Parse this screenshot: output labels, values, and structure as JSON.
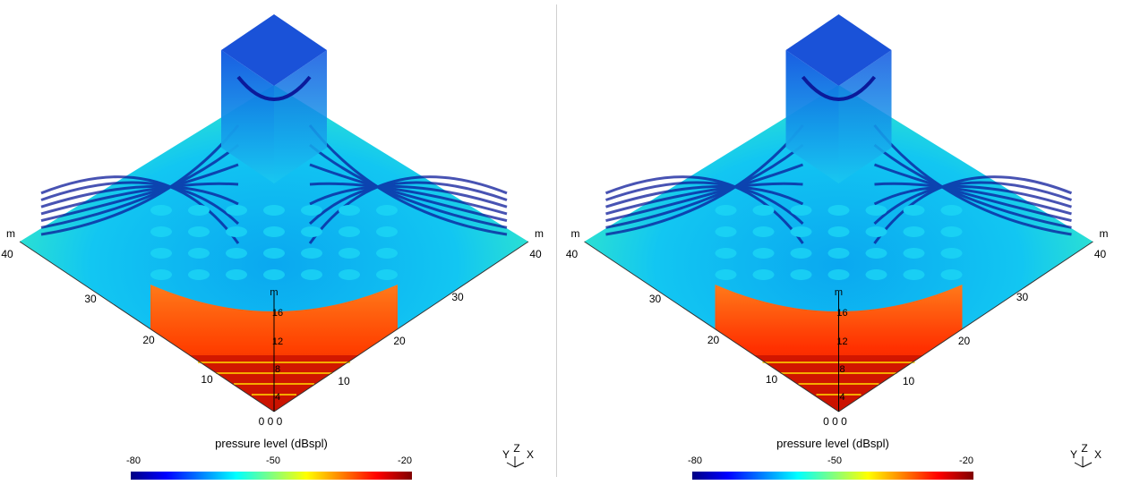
{
  "colors": {
    "scale": [
      "#000083",
      "#0000ff",
      "#0080ff",
      "#00ffff",
      "#80ff80",
      "#ffff00",
      "#ff8000",
      "#ff0000",
      "#800000"
    ],
    "field_base": "#19d4f0",
    "node_line": "#0b1a9a",
    "hot": "#ff4000"
  },
  "chart_data": [
    {
      "type": "heatmap",
      "title": "",
      "axis_unit": "m",
      "x_ticks": [
        "0",
        "10",
        "20",
        "30",
        "40"
      ],
      "y_ticks": [
        "0",
        "10",
        "20",
        "30",
        "40"
      ],
      "z_ticks": [
        "4",
        "8",
        "12",
        "16"
      ],
      "origin_label": "0",
      "orientation_axes": [
        "Y",
        "Z",
        "X"
      ],
      "colorbar": {
        "label": "pressure level (dBspl)",
        "min_label": "-80",
        "mid_label": "-50",
        "max_label": "-20",
        "min": -80,
        "max": -20
      }
    },
    {
      "type": "heatmap",
      "title": "",
      "axis_unit": "m",
      "x_ticks": [
        "0",
        "10",
        "20",
        "30",
        "40"
      ],
      "y_ticks": [
        "0",
        "10",
        "20",
        "30",
        "40"
      ],
      "z_ticks": [
        "4",
        "8",
        "12",
        "16"
      ],
      "origin_label": "0",
      "orientation_axes": [
        "Y",
        "Z",
        "X"
      ],
      "colorbar": {
        "label": "pressure level (dBspl)",
        "min_label": "-80",
        "mid_label": "-50",
        "max_label": "-20",
        "min": -80,
        "max": -20
      }
    }
  ]
}
